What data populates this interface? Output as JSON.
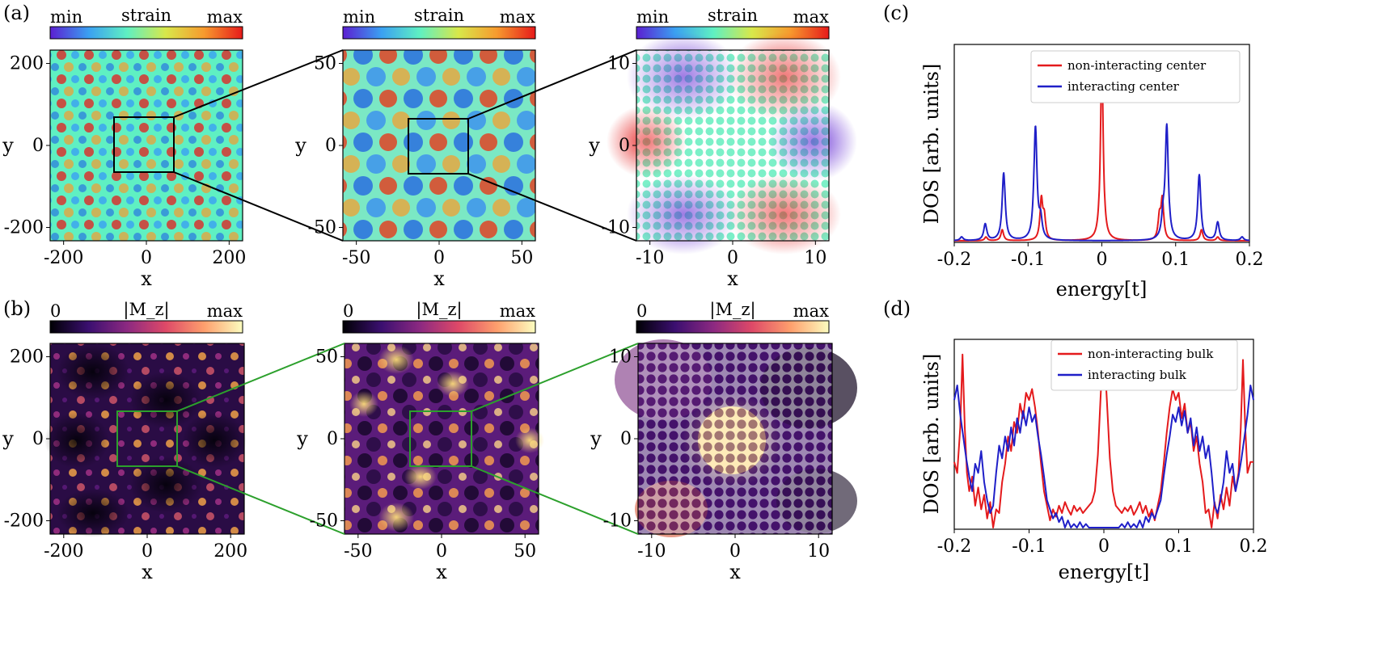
{
  "figure": {
    "panel_labels": [
      "(a)",
      "(b)",
      "(c)",
      "(d)"
    ],
    "row_a": {
      "colorbar_min": "min",
      "colorbar_title": "strain",
      "colorbar_max": "max",
      "colormap": [
        "#5b1fd1",
        "#3aa0f2",
        "#5ff0c2",
        "#d8e84a",
        "#f79a2e",
        "#e61a1a"
      ],
      "connector_color": "#000000"
    },
    "row_b": {
      "colorbar_min": "0",
      "colorbar_title": "|M_z|",
      "colorbar_max": "max",
      "colormap": [
        "#000004",
        "#3b0f70",
        "#8c2981",
        "#de4968",
        "#fe9f6d",
        "#fcfdbf"
      ],
      "connector_color": "#2ca02c"
    },
    "maps": [
      {
        "xticks": [
          "-200",
          "0",
          "200"
        ],
        "yticks": [
          "200",
          "0",
          "-200"
        ],
        "xlabel": "x",
        "ylabel": "y"
      },
      {
        "xticks": [
          "-50",
          "0",
          "50"
        ],
        "yticks": [
          "50",
          "0",
          "-50"
        ],
        "xlabel": "x",
        "ylabel": "y"
      },
      {
        "xticks": [
          "-10",
          "0",
          "10"
        ],
        "yticks": [
          "10",
          "0",
          "-10"
        ],
        "xlabel": "x",
        "ylabel": "y"
      }
    ]
  },
  "chart_data": [
    {
      "type": "line",
      "panel": "(c)",
      "xlabel": "energy[t]",
      "ylabel": "DOS [arb. units]",
      "xlim": [
        -0.2,
        0.2
      ],
      "xticks": [
        "-0.2",
        "-0.1",
        "0",
        "0.1",
        "0.2"
      ],
      "legend_position": "top-right",
      "series": [
        {
          "name": "non-interacting center",
          "color": "#e41a1c",
          "peaks": [
            [
              -0.157,
              0.02
            ],
            [
              -0.135,
              0.06
            ],
            [
              -0.082,
              0.22
            ],
            [
              -0.078,
              0.12
            ],
            [
              0.0,
              1.0
            ],
            [
              0.078,
              0.12
            ],
            [
              0.082,
              0.22
            ],
            [
              0.135,
              0.06
            ],
            [
              0.157,
              0.02
            ]
          ],
          "width": 0.0022
        },
        {
          "name": "interacting center",
          "color": "#1f1fc8",
          "peaks": [
            [
              -0.19,
              0.02
            ],
            [
              -0.158,
              0.09
            ],
            [
              -0.133,
              0.37
            ],
            [
              -0.09,
              0.62
            ],
            [
              -0.083,
              0.1
            ],
            [
              0.083,
              0.1
            ],
            [
              0.088,
              0.62
            ],
            [
              0.132,
              0.36
            ],
            [
              0.157,
              0.1
            ],
            [
              0.19,
              0.02
            ]
          ],
          "width": 0.0025
        }
      ]
    },
    {
      "type": "line",
      "panel": "(d)",
      "xlabel": "energy[t]",
      "ylabel": "DOS [arb. units]",
      "xlim": [
        -0.2,
        0.2
      ],
      "xticks": [
        "-0.2",
        "-0.1",
        "0",
        "0.1",
        "0.2"
      ],
      "legend_position": "top-right",
      "series": [
        {
          "name": "non-interacting bulk",
          "color": "#e41a1c",
          "x": [
            -0.2,
            -0.196,
            -0.192,
            -0.189,
            -0.186,
            -0.183,
            -0.18,
            -0.176,
            -0.172,
            -0.168,
            -0.164,
            -0.16,
            -0.156,
            -0.152,
            -0.148,
            -0.144,
            -0.14,
            -0.136,
            -0.132,
            -0.128,
            -0.124,
            -0.12,
            -0.116,
            -0.112,
            -0.108,
            -0.104,
            -0.1,
            -0.096,
            -0.092,
            -0.088,
            -0.084,
            -0.08,
            -0.076,
            -0.072,
            -0.068,
            -0.064,
            -0.06,
            -0.056,
            -0.052,
            -0.048,
            -0.044,
            -0.04,
            -0.036,
            -0.032,
            -0.028,
            -0.024,
            -0.02,
            -0.016,
            -0.012,
            -0.008,
            -0.004,
            0.0,
            0.004,
            0.008,
            0.012,
            0.016,
            0.02,
            0.024,
            0.028,
            0.032,
            0.036,
            0.04,
            0.044,
            0.048,
            0.052,
            0.056,
            0.06,
            0.064,
            0.068,
            0.072,
            0.076,
            0.08,
            0.084,
            0.088,
            0.092,
            0.096,
            0.1,
            0.104,
            0.108,
            0.112,
            0.116,
            0.12,
            0.124,
            0.128,
            0.132,
            0.136,
            0.14,
            0.144,
            0.148,
            0.152,
            0.156,
            0.16,
            0.164,
            0.168,
            0.172,
            0.176,
            0.18,
            0.183,
            0.186,
            0.189,
            0.192,
            0.196,
            0.2
          ],
          "y": [
            0.36,
            0.3,
            0.55,
            0.95,
            0.55,
            0.3,
            0.2,
            0.28,
            0.12,
            0.22,
            0.1,
            0.18,
            0.05,
            0.14,
            0.0,
            0.1,
            0.08,
            0.25,
            0.35,
            0.5,
            0.42,
            0.58,
            0.52,
            0.68,
            0.6,
            0.74,
            0.7,
            0.76,
            0.66,
            0.52,
            0.35,
            0.2,
            0.12,
            0.04,
            0.1,
            0.06,
            0.12,
            0.08,
            0.14,
            0.1,
            0.07,
            0.12,
            0.09,
            0.11,
            0.08,
            0.1,
            0.12,
            0.14,
            0.2,
            0.4,
            0.75,
            1.0,
            0.7,
            0.38,
            0.2,
            0.12,
            0.1,
            0.08,
            0.11,
            0.09,
            0.12,
            0.07,
            0.1,
            0.14,
            0.08,
            0.12,
            0.06,
            0.1,
            0.04,
            0.12,
            0.2,
            0.35,
            0.52,
            0.66,
            0.76,
            0.7,
            0.74,
            0.6,
            0.68,
            0.52,
            0.58,
            0.42,
            0.5,
            0.35,
            0.25,
            0.08,
            0.1,
            0.0,
            0.14,
            0.05,
            0.18,
            0.1,
            0.22,
            0.12,
            0.28,
            0.2,
            0.3,
            0.55,
            0.92,
            0.55,
            0.3,
            0.36,
            0.36
          ]
        },
        {
          "name": "interacting bulk",
          "color": "#1f1fc8",
          "x": [
            -0.2,
            -0.196,
            -0.192,
            -0.188,
            -0.184,
            -0.18,
            -0.176,
            -0.172,
            -0.168,
            -0.164,
            -0.16,
            -0.156,
            -0.152,
            -0.148,
            -0.144,
            -0.14,
            -0.136,
            -0.132,
            -0.128,
            -0.124,
            -0.12,
            -0.116,
            -0.112,
            -0.108,
            -0.104,
            -0.1,
            -0.096,
            -0.092,
            -0.088,
            -0.084,
            -0.08,
            -0.076,
            -0.072,
            -0.068,
            -0.064,
            -0.06,
            -0.056,
            -0.052,
            -0.048,
            -0.044,
            -0.04,
            -0.036,
            -0.032,
            -0.028,
            -0.024,
            -0.02,
            -0.016,
            -0.012,
            -0.008,
            -0.004,
            0.0,
            0.004,
            0.008,
            0.012,
            0.016,
            0.02,
            0.024,
            0.028,
            0.032,
            0.036,
            0.04,
            0.044,
            0.048,
            0.052,
            0.056,
            0.06,
            0.064,
            0.068,
            0.072,
            0.076,
            0.08,
            0.084,
            0.088,
            0.092,
            0.096,
            0.1,
            0.104,
            0.108,
            0.112,
            0.116,
            0.12,
            0.124,
            0.128,
            0.132,
            0.136,
            0.14,
            0.144,
            0.148,
            0.152,
            0.156,
            0.16,
            0.164,
            0.168,
            0.172,
            0.176,
            0.18,
            0.184,
            0.188,
            0.192,
            0.196,
            0.2
          ],
          "y": [
            0.7,
            0.78,
            0.62,
            0.5,
            0.38,
            0.28,
            0.2,
            0.35,
            0.3,
            0.42,
            0.25,
            0.15,
            0.08,
            0.12,
            0.3,
            0.45,
            0.38,
            0.5,
            0.42,
            0.55,
            0.45,
            0.6,
            0.52,
            0.64,
            0.56,
            0.66,
            0.58,
            0.62,
            0.5,
            0.4,
            0.28,
            0.15,
            0.1,
            0.05,
            0.08,
            0.03,
            0.06,
            0.0,
            0.04,
            0.0,
            0.02,
            0.0,
            0.03,
            0.0,
            0.02,
            0.0,
            0.0,
            0.0,
            0.0,
            0.0,
            0.0,
            0.0,
            0.0,
            0.0,
            0.0,
            0.0,
            0.02,
            0.0,
            0.03,
            0.0,
            0.02,
            0.0,
            0.04,
            0.0,
            0.06,
            0.03,
            0.08,
            0.05,
            0.1,
            0.15,
            0.28,
            0.4,
            0.5,
            0.62,
            0.58,
            0.66,
            0.56,
            0.64,
            0.52,
            0.6,
            0.45,
            0.55,
            0.42,
            0.5,
            0.38,
            0.45,
            0.3,
            0.12,
            0.08,
            0.15,
            0.25,
            0.42,
            0.3,
            0.35,
            0.2,
            0.28,
            0.38,
            0.5,
            0.62,
            0.78,
            0.7
          ]
        }
      ]
    }
  ]
}
